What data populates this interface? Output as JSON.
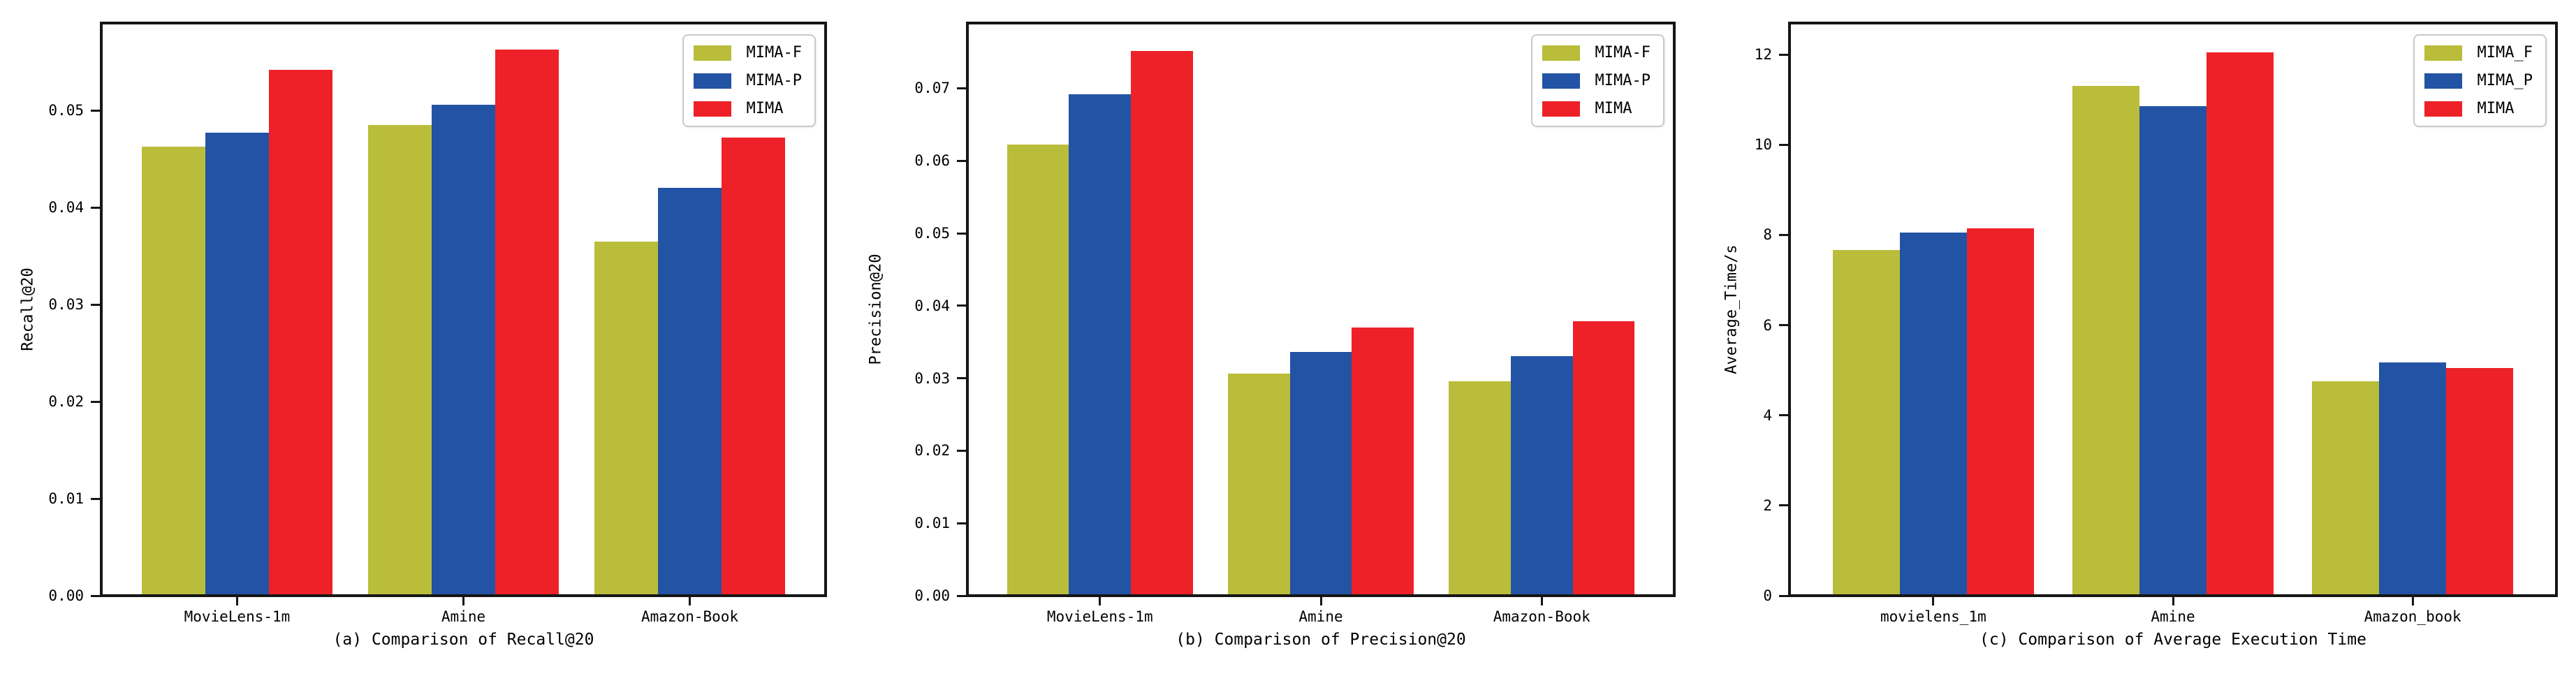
{
  "figure": {
    "background": "#ffffff",
    "spine_color": "#161616",
    "text_color": "#000000",
    "series_colors": {
      "mima_f": "#b9bd3a",
      "mima_p": "#2353a4",
      "mima": "#ee2128"
    }
  },
  "chart_data": [
    {
      "type": "bar",
      "caption": "(a) Comparison of Recall@20",
      "ylabel": "Recall@20",
      "categories": [
        "MovieLens-1m",
        "Amine",
        "Amazon-Book"
      ],
      "series": [
        {
          "name": "MIMA-F",
          "color": "#b9bd3a",
          "values": [
            0.0463,
            0.0485,
            0.0365
          ]
        },
        {
          "name": "MIMA-P",
          "color": "#2353a4",
          "values": [
            0.0477,
            0.0506,
            0.042
          ]
        },
        {
          "name": "MIMA",
          "color": "#ee2128",
          "values": [
            0.0542,
            0.0563,
            0.0472
          ]
        }
      ],
      "ylim": [
        0,
        0.059
      ],
      "yticks": [
        0,
        0.01,
        0.02,
        0.03,
        0.04,
        0.05
      ],
      "ytick_labels": [
        "0.00",
        "0.01",
        "0.02",
        "0.03",
        "0.04",
        "0.05"
      ],
      "grid": false,
      "legend_position": "upper right"
    },
    {
      "type": "bar",
      "caption": "(b) Comparison of Precision@20",
      "ylabel": "Precision@20",
      "categories": [
        "MovieLens-1m",
        "Amine",
        "Amazon-Book"
      ],
      "series": [
        {
          "name": "MIMA-F",
          "color": "#b9bd3a",
          "values": [
            0.0622,
            0.0306,
            0.0296
          ]
        },
        {
          "name": "MIMA-P",
          "color": "#2353a4",
          "values": [
            0.0692,
            0.0336,
            0.033
          ]
        },
        {
          "name": "MIMA",
          "color": "#ee2128",
          "values": [
            0.0751,
            0.037,
            0.0379
          ]
        }
      ],
      "ylim": [
        0,
        0.079
      ],
      "yticks": [
        0,
        0.01,
        0.02,
        0.03,
        0.04,
        0.05,
        0.06,
        0.07
      ],
      "ytick_labels": [
        "0.00",
        "0.01",
        "0.02",
        "0.03",
        "0.04",
        "0.05",
        "0.06",
        "0.07"
      ],
      "grid": false,
      "legend_position": "upper right"
    },
    {
      "type": "bar",
      "caption": "(c) Comparison of Average Execution Time",
      "ylabel": "Average_Time/s",
      "categories": [
        "movielens_1m",
        "Amine",
        "Amazon_book"
      ],
      "series": [
        {
          "name": "MIMA_F",
          "color": "#b9bd3a",
          "values": [
            7.66,
            11.3,
            4.76
          ]
        },
        {
          "name": "MIMA_P",
          "color": "#2353a4",
          "values": [
            8.06,
            10.85,
            5.18
          ]
        },
        {
          "name": "MIMA",
          "color": "#ee2128",
          "values": [
            8.15,
            12.05,
            5.05
          ]
        }
      ],
      "ylim": [
        0,
        12.7
      ],
      "yticks": [
        0,
        2,
        4,
        6,
        8,
        10,
        12
      ],
      "ytick_labels": [
        "0",
        "2",
        "4",
        "6",
        "8",
        "10",
        "12"
      ],
      "grid": false,
      "legend_position": "upper right"
    }
  ]
}
